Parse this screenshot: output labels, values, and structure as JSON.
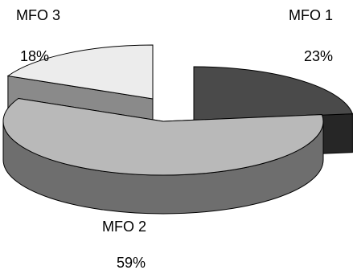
{
  "chart_data": {
    "type": "pie",
    "style": "3d-exploded",
    "categories": [
      "MFO 1",
      "MFO 2",
      "MFO 3"
    ],
    "values": [
      23,
      59,
      18
    ],
    "value_labels": [
      "23%",
      "59%",
      "18%"
    ],
    "colors": {
      "MFO 1": {
        "top": "#4a4a4a",
        "side": "#262626"
      },
      "MFO 2": {
        "top": "#b9b9b9",
        "side": "#6e6e6e"
      },
      "MFO 3": {
        "top": "#ececec",
        "side": "#8a8a8a"
      }
    },
    "legend": "none"
  }
}
